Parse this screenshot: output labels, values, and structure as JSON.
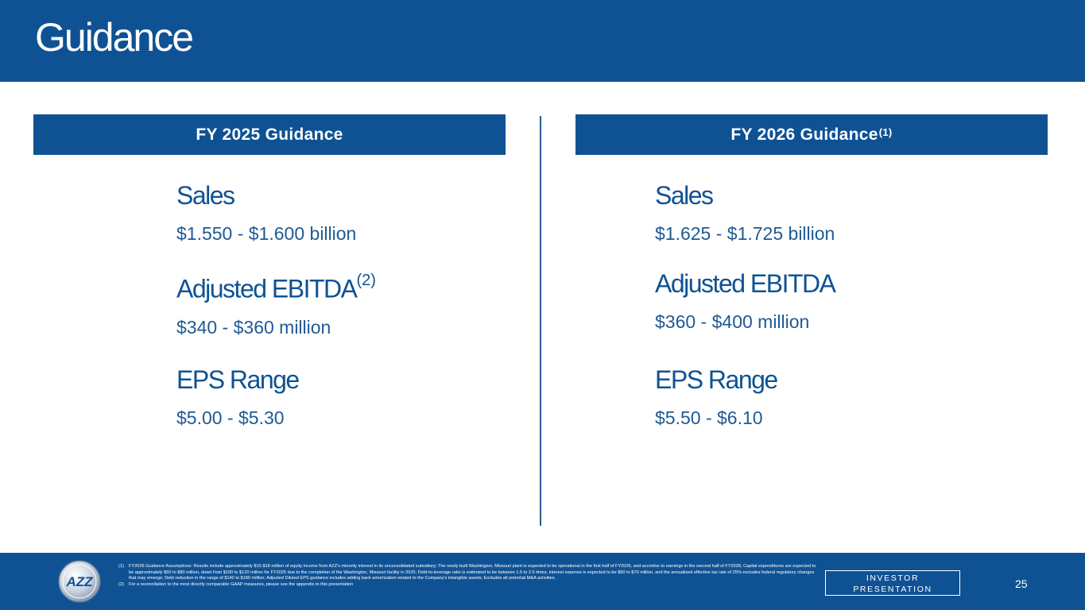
{
  "slide": {
    "title": "Guidance",
    "page_number": "25"
  },
  "left": {
    "header": "FY 2025 Guidance",
    "metrics": [
      {
        "label": "Sales",
        "value": "$1.550 - $1.600 billion"
      },
      {
        "label": "Adjusted EBITDA",
        "label_sup": "(2)",
        "value": "$340 - $360 million"
      },
      {
        "label": "EPS Range",
        "value": "$5.00 - $5.30"
      }
    ]
  },
  "right": {
    "header": "FY 2026 Guidance",
    "header_sup": "(1)",
    "metrics": [
      {
        "label": "Sales",
        "value": "$1.625 - $1.725 billion"
      },
      {
        "label": "Adjusted EBITDA",
        "value": "$360 - $400 million"
      },
      {
        "label": "EPS Range",
        "value": "$5.50 - $6.10"
      }
    ]
  },
  "footer": {
    "logo_text": "AZZ",
    "notes": [
      {
        "num": "(1)",
        "text": "FY2026 Guidance Assumptions: Results include approximately $15-$18 million of equity income from AZZ's minority interest in its unconsolidated subsidiary; The newly built Washington, Missouri plant is expected to be operational in the first half of FY2026, and accretive to earnings in the second half of FY2026; Capital expenditures are expected to be approximately $60 to $80 million, down from $100 to $120 million for FY2025 due to the completion of the Washington, Missouri facility in 2025; Debt-to-leverage ratio is estimated to be between 1.5 to 2.5 times, interest expense is expected to be $60 to $70 million, and the annualized effective tax rate of 25% excludes federal regulatory changes that may emerge; Debt reduction in the range of $140 to $180 million; Adjusted Diluted EPS guidance includes adding back amortization related to the Company's intangible assets; Excludes all potential M&A activities."
      },
      {
        "num": "(2)",
        "text": "For a reconciliation to the most directly comparable GAAP measures, please see the appendix to this presentation"
      }
    ],
    "investor_line1": "INVESTOR",
    "investor_line2": "PRESENTATION"
  },
  "colors": {
    "brand_blue": "#0f5294",
    "value_blue": "#1f5a93",
    "divider": "#2b5d8f"
  }
}
